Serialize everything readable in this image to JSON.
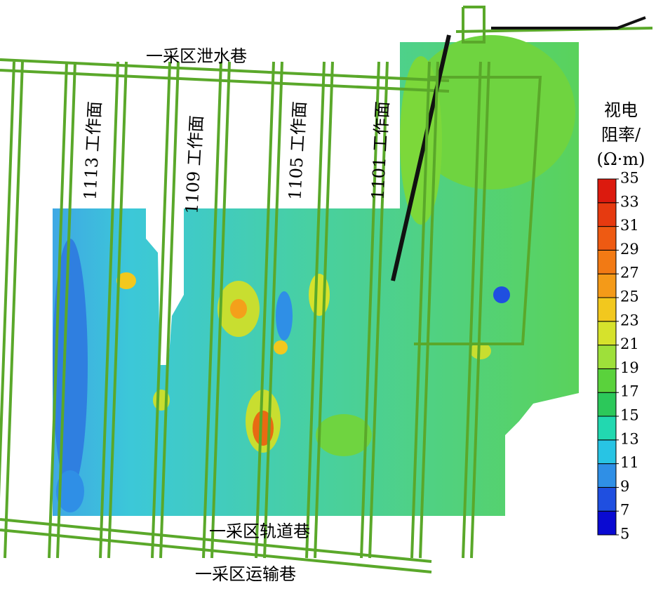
{
  "roadways": {
    "top": "一采区泄水巷",
    "track": "一采区轨道巷",
    "haulage": "一采区运输巷"
  },
  "faces": [
    "1113 工作面",
    "1109 工作面",
    "1105 工作面",
    "1101 工作面"
  ],
  "colorbar": {
    "title": [
      "视电",
      "阻率/",
      "(Ω·m)"
    ],
    "range": [
      5,
      35
    ],
    "ticks": [
      5,
      7,
      9,
      11,
      13,
      15,
      17,
      19,
      21,
      23,
      25,
      27,
      29,
      31,
      33,
      35
    ],
    "colors": [
      "#0a0ad2",
      "#1f4fe0",
      "#2f8fe6",
      "#28c4e4",
      "#22d8b0",
      "#2cc85a",
      "#5ad23c",
      "#9ee03a",
      "#d6e22c",
      "#f2c81e",
      "#f49a18",
      "#f27a14",
      "#ee5a12",
      "#e63a10",
      "#dc1a0e"
    ]
  }
}
